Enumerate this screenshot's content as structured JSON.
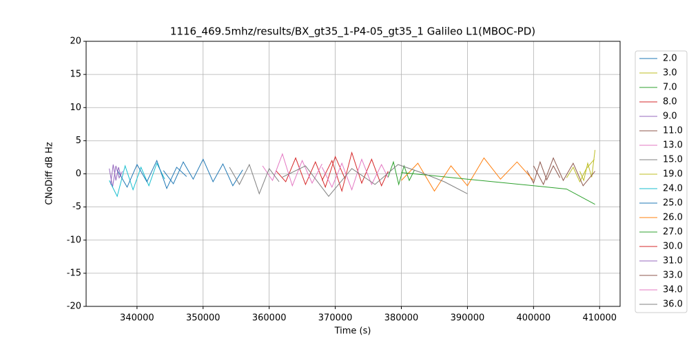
{
  "chart_data": {
    "type": "line",
    "title": "1116_469.5mhz/results/BX_gt35_1-P4-05_gt35_1 Galileo L1(MBOC-PD)",
    "xlabel": "Time (s)",
    "ylabel": "CNoDiff dB Hz",
    "xlim": [
      332300,
      413100
    ],
    "ylim": [
      -20,
      20
    ],
    "xticks": [
      340000,
      350000,
      360000,
      370000,
      380000,
      390000,
      400000,
      410000
    ],
    "yticks": [
      -20,
      -15,
      -10,
      -5,
      0,
      5,
      10,
      15,
      20
    ],
    "grid": true,
    "legend": "outside-right",
    "series": [
      {
        "name": "2.0",
        "color": "#1f77b4",
        "x": [
          344000,
          345500,
          347000,
          348500,
          350000,
          351500,
          353000,
          354500,
          356000
        ],
        "values": [
          0.5,
          -1.5,
          1.8,
          -0.8,
          2.2,
          -1.2,
          1.5,
          -1.8,
          0.6
        ]
      },
      {
        "name": "3.0",
        "color": "#bcbd22",
        "x": [
          407000,
          407600,
          408200,
          408800,
          409300
        ],
        "values": [
          0.4,
          -1.0,
          1.6,
          -0.5,
          3.6
        ]
      },
      {
        "name": "7.0",
        "color": "#2ca02c",
        "x": [
          378000,
          378800,
          379600,
          380400,
          381200,
          382000
        ],
        "values": [
          -0.5,
          1.8,
          -1.6,
          1.2,
          -1.0,
          0.6
        ]
      },
      {
        "name": "8.0",
        "color": "#d62728",
        "x": [
          361000,
          362500,
          364000,
          365500,
          367000,
          368500,
          370000,
          371500
        ],
        "values": [
          0.5,
          -1.2,
          2.4,
          -1.6,
          1.8,
          -2.0,
          2.6,
          -0.8
        ]
      },
      {
        "name": "9.0",
        "color": "#9467bd",
        "x": [
          335800,
          336300,
          336800,
          337300,
          337800
        ],
        "values": [
          0.8,
          -2.0,
          1.2,
          -0.6,
          0.4
        ]
      },
      {
        "name": "11.0",
        "color": "#8c564b",
        "x": [
          399000,
          400000,
          401000,
          402000,
          403000,
          404000
        ],
        "values": [
          0.5,
          -1.4,
          1.8,
          -0.9,
          1.2,
          -0.6
        ]
      },
      {
        "name": "13.0",
        "color": "#e377c2",
        "x": [
          359000,
          360500,
          362000,
          363500,
          365000,
          366500,
          368000
        ],
        "values": [
          1.2,
          -1.0,
          3.0,
          -1.8,
          2.0,
          -1.4,
          1.5
        ]
      },
      {
        "name": "15.0",
        "color": "#7f7f7f",
        "x": [
          354000,
          355500,
          357000,
          358500,
          360000,
          361500
        ],
        "values": [
          1.0,
          -1.6,
          1.4,
          -3.0,
          0.8,
          -1.2
        ]
      },
      {
        "name": "19.0",
        "color": "#bcbd22",
        "x": [
          405000,
          406000,
          407000,
          408000,
          409200
        ],
        "values": [
          -0.6,
          1.0,
          -1.2,
          0.8,
          2.2
        ]
      },
      {
        "name": "24.0",
        "color": "#17becf",
        "x": [
          335800,
          337000,
          338200,
          339400,
          340600,
          341800,
          343000,
          344200
        ],
        "values": [
          -1.0,
          -3.4,
          1.2,
          -2.4,
          1.0,
          -1.8,
          1.6,
          -0.8
        ]
      },
      {
        "name": "25.0",
        "color": "#1f77b4",
        "x": [
          337000,
          338500,
          340000,
          341500,
          343000,
          344500,
          346000,
          347500
        ],
        "values": [
          0.6,
          -2.0,
          1.4,
          -1.2,
          2.0,
          -2.2,
          1.0,
          -0.4
        ]
      },
      {
        "name": "26.0",
        "color": "#ff7f0e",
        "x": [
          380000,
          382500,
          385000,
          387500,
          390000,
          392500,
          395000,
          397500,
          400000
        ],
        "values": [
          -1.0,
          1.6,
          -2.6,
          1.2,
          -1.8,
          2.4,
          -0.8,
          1.8,
          -1.0
        ]
      },
      {
        "name": "27.0",
        "color": "#2ca02c",
        "x": [
          380000,
          385000,
          390000,
          395000,
          400000,
          405000,
          409300
        ],
        "values": [
          0.2,
          -0.3,
          -0.8,
          -1.3,
          -1.8,
          -2.3,
          -4.6
        ]
      },
      {
        "name": "30.0",
        "color": "#d62728",
        "x": [
          368000,
          369500,
          371000,
          372500,
          374000,
          375500,
          377000,
          378000
        ],
        "values": [
          -1.0,
          2.0,
          -2.6,
          3.2,
          -1.4,
          2.2,
          -1.8,
          0.4
        ]
      },
      {
        "name": "31.0",
        "color": "#9467bd",
        "x": [
          336000,
          336400,
          336800,
          337200,
          337600
        ],
        "values": [
          -1.6,
          1.4,
          -1.0,
          1.0,
          -0.4
        ]
      },
      {
        "name": "33.0",
        "color": "#8c564b",
        "x": [
          400000,
          401500,
          403000,
          404500,
          406000,
          407500,
          409300
        ],
        "values": [
          1.2,
          -1.6,
          2.4,
          -1.0,
          1.6,
          -1.8,
          0.4
        ]
      },
      {
        "name": "34.0",
        "color": "#e377c2",
        "x": [
          368000,
          369500,
          371000,
          372500,
          374000,
          375500,
          377000,
          378000
        ],
        "values": [
          1.0,
          -2.0,
          1.6,
          -2.4,
          2.2,
          -1.6,
          1.4,
          -0.6
        ]
      },
      {
        "name": "36.0",
        "color": "#7f7f7f",
        "x": [
          362000,
          365500,
          369000,
          372500,
          376000,
          379500,
          383000,
          386500,
          390000
        ],
        "values": [
          -0.5,
          1.2,
          -3.4,
          0.8,
          -1.6,
          1.4,
          0.2,
          -1.2,
          -3.0
        ]
      }
    ]
  }
}
